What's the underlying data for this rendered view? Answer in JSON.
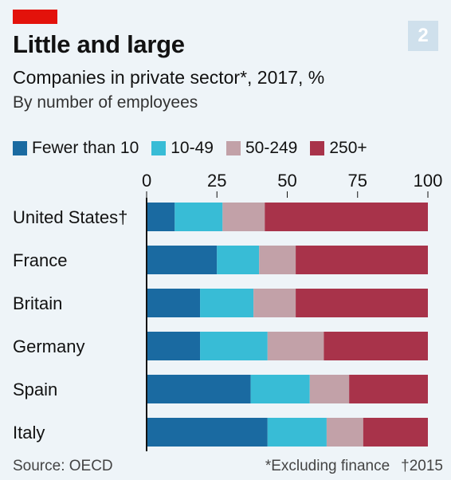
{
  "header": {
    "title": "Little and large",
    "subtitle": "Companies in private sector*, 2017, %",
    "subtitle2": "By number of employees",
    "badge": "2"
  },
  "footer": {
    "source": "Source: OECD",
    "note": "*Excluding finance",
    "dagger_note": "†2015"
  },
  "colors": {
    "accent_red": "#e3120b",
    "series": [
      "#1a6aa1",
      "#38bcd6",
      "#c2a1a8",
      "#a8334a"
    ]
  },
  "chart_data": {
    "type": "bar",
    "orientation": "horizontal",
    "stacked": true,
    "title": "Little and large",
    "subtitle": "Companies in private sector*, 2017, %",
    "categories": [
      "United States†",
      "France",
      "Britain",
      "Germany",
      "Spain",
      "Italy"
    ],
    "series": [
      {
        "name": "Fewer than 10",
        "values": [
          10,
          25,
          19,
          19,
          37,
          43
        ]
      },
      {
        "name": "10-49",
        "values": [
          17,
          15,
          19,
          24,
          21,
          21
        ]
      },
      {
        "name": "50-249",
        "values": [
          15,
          13,
          15,
          20,
          14,
          13
        ]
      },
      {
        "name": "250+",
        "values": [
          58,
          47,
          47,
          37,
          28,
          23
        ]
      }
    ],
    "xlim": [
      0,
      100
    ],
    "xticks": [
      0,
      25,
      50,
      75,
      100
    ],
    "xaxis_position": "top",
    "grid": false,
    "legend_position": "top-left"
  }
}
